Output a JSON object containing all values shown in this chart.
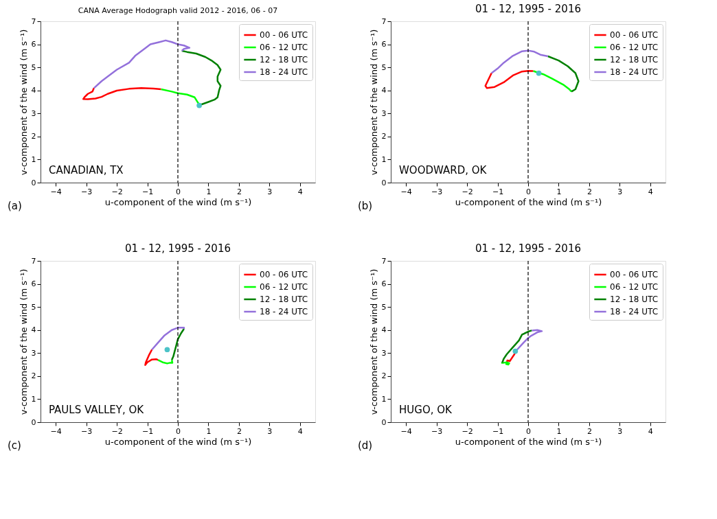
{
  "chart_data": [
    {
      "type": "line",
      "title": "CANA Average Hodograph valid 2012 - 2016, 06 - 07",
      "xlabel": "u-component of the wind (m s⁻¹)",
      "ylabel": "v-component of the wind (m s⁻¹)",
      "xlim": [
        -4.5,
        4.5
      ],
      "ylim": [
        0,
        7
      ],
      "xticks": [
        -4,
        -3,
        -2,
        -1,
        0,
        1,
        2,
        3,
        4
      ],
      "yticks": [
        0,
        1,
        2,
        3,
        4,
        5,
        6,
        7
      ],
      "grid": false,
      "legend": "top right",
      "line_style": "solid",
      "ref_lines": [
        {
          "axis": "x",
          "value": 0,
          "color": "#000000",
          "line_style": "dashed"
        }
      ],
      "annotations": [
        "CANADIAN, TX",
        "(a)"
      ],
      "series": [
        {
          "name": "00 - 06 UTC",
          "color": "#ff0000",
          "x": [
            -2.75,
            -2.8,
            -2.95,
            -3.05,
            -3.1,
            -2.95,
            -2.7,
            -2.5,
            -2.3,
            -2.0,
            -1.6,
            -1.2,
            -0.8,
            -0.55
          ],
          "values": [
            4.1,
            3.95,
            3.85,
            3.72,
            3.63,
            3.62,
            3.65,
            3.72,
            3.85,
            3.99,
            4.07,
            4.1,
            4.08,
            4.05
          ]
        },
        {
          "name": "06 - 12 UTC",
          "color": "#00ff00",
          "x": [
            -0.55,
            -0.2,
            0,
            0.3,
            0.55,
            0.62,
            0.7,
            0.7,
            0.75
          ],
          "values": [
            4.05,
            3.95,
            3.88,
            3.82,
            3.7,
            3.55,
            3.38,
            3.32,
            3.38
          ]
        },
        {
          "name": "12 - 18 UTC",
          "color": "#008000",
          "x": [
            0.75,
            1.0,
            1.2,
            1.3,
            1.35,
            1.4,
            1.3,
            1.3,
            1.4,
            1.3,
            1.1,
            0.9,
            0.6,
            0.3,
            0.13
          ],
          "values": [
            3.38,
            3.5,
            3.6,
            3.7,
            4.0,
            4.2,
            4.4,
            4.6,
            4.9,
            5.1,
            5.3,
            5.45,
            5.6,
            5.67,
            5.72
          ]
        },
        {
          "name": "18 - 24 UTC",
          "color": "#9370db",
          "x": [
            0.13,
            0.2,
            0.38,
            0.2,
            0,
            -0.2,
            -0.4,
            -0.6,
            -0.9,
            -1.1,
            -1.4,
            -1.6,
            -2.0,
            -2.3,
            -2.5,
            -2.75
          ],
          "values": [
            5.72,
            5.8,
            5.85,
            5.95,
            6.0,
            6.1,
            6.17,
            6.1,
            6.0,
            5.8,
            5.5,
            5.2,
            4.9,
            4.6,
            4.4,
            4.1
          ]
        },
        {
          "type": "scatter",
          "marker": "circle",
          "color": "#4cc3c8",
          "x": [
            0.7
          ],
          "values": [
            3.35
          ]
        }
      ]
    },
    {
      "type": "line",
      "title": "01 - 12, 1995 - 2016",
      "xlabel": "u-component of the wind (m s⁻¹)",
      "ylabel": "v-component of the wind (m s⁻¹)",
      "xlim": [
        -4.5,
        4.5
      ],
      "ylim": [
        0,
        7
      ],
      "xticks": [
        -4,
        -3,
        -2,
        -1,
        0,
        1,
        2,
        3,
        4
      ],
      "yticks": [
        0,
        1,
        2,
        3,
        4,
        5,
        6,
        7
      ],
      "grid": false,
      "legend": "top right",
      "line_style": "solid",
      "ref_lines": [
        {
          "axis": "x",
          "value": 0,
          "color": "#000000",
          "line_style": "dashed"
        }
      ],
      "annotations": [
        "WOODWARD, OK",
        "(b)"
      ],
      "series": [
        {
          "name": "00 - 06 UTC",
          "color": "#ff0000",
          "x": [
            -1.2,
            -1.4,
            -1.35,
            -1.1,
            -0.8,
            -0.5,
            -0.2,
            0,
            0.17
          ],
          "values": [
            4.75,
            4.2,
            4.1,
            4.15,
            4.35,
            4.65,
            4.82,
            4.85,
            4.84
          ]
        },
        {
          "name": "06 - 12 UTC",
          "color": "#00ff00",
          "x": [
            0.17,
            0.5,
            0.8,
            1.15,
            1.35,
            1.42
          ],
          "values": [
            4.84,
            4.7,
            4.5,
            4.25,
            4.05,
            3.95
          ]
        },
        {
          "name": "12 - 18 UTC",
          "color": "#008000",
          "x": [
            1.42,
            1.55,
            1.65,
            1.55,
            1.3,
            1.0,
            0.65
          ],
          "values": [
            3.95,
            4.05,
            4.4,
            4.75,
            5.05,
            5.3,
            5.48
          ]
        },
        {
          "name": "18 - 24 UTC",
          "color": "#9370db",
          "x": [
            0.65,
            0.4,
            0.2,
            0,
            -0.2,
            -0.5,
            -0.8,
            -1.0,
            -1.2
          ],
          "values": [
            5.48,
            5.55,
            5.68,
            5.73,
            5.7,
            5.5,
            5.2,
            4.95,
            4.75
          ]
        },
        {
          "type": "scatter",
          "marker": "circle",
          "color": "#4cc3c8",
          "x": [
            0.35
          ],
          "values": [
            4.75
          ]
        }
      ]
    },
    {
      "type": "line",
      "title": "01 - 12, 1995 - 2016",
      "xlabel": "u-component of the wind (m s⁻¹)",
      "ylabel": "v-component of the wind (m s⁻¹)",
      "xlim": [
        -4.5,
        4.5
      ],
      "ylim": [
        0,
        7
      ],
      "xticks": [
        -4,
        -3,
        -2,
        -1,
        0,
        1,
        2,
        3,
        4
      ],
      "yticks": [
        0,
        1,
        2,
        3,
        4,
        5,
        6,
        7
      ],
      "grid": false,
      "legend": "top right",
      "line_style": "solid",
      "ref_lines": [
        {
          "axis": "x",
          "value": 0,
          "color": "#000000",
          "line_style": "dashed"
        }
      ],
      "annotations": [
        "PAULS VALLEY, OK",
        "(c)"
      ],
      "series": [
        {
          "name": "00 - 06 UTC",
          "color": "#ff0000",
          "x": [
            -0.85,
            -0.95,
            -1.05,
            -1.07,
            -1.0,
            -0.85,
            -0.7,
            -0.65
          ],
          "values": [
            3.15,
            2.9,
            2.6,
            2.48,
            2.6,
            2.72,
            2.73,
            2.7
          ]
        },
        {
          "name": "06 - 12 UTC",
          "color": "#00ff00",
          "x": [
            -0.65,
            -0.5,
            -0.35,
            -0.25,
            -0.18,
            -0.2
          ],
          "values": [
            2.7,
            2.6,
            2.55,
            2.58,
            2.58,
            2.7
          ]
        },
        {
          "name": "12 - 18 UTC",
          "color": "#008000",
          "x": [
            -0.2,
            -0.15,
            -0.1,
            -0.05,
            0,
            0.1,
            0.2
          ],
          "values": [
            2.7,
            2.85,
            3.1,
            3.35,
            3.6,
            3.85,
            4.05
          ]
        },
        {
          "name": "18 - 24 UTC",
          "color": "#9370db",
          "x": [
            0.2,
            0.2,
            0,
            -0.2,
            -0.45,
            -0.65,
            -0.85
          ],
          "values": [
            4.05,
            4.1,
            4.1,
            4.0,
            3.75,
            3.45,
            3.15
          ]
        },
        {
          "type": "scatter",
          "marker": "circle",
          "color": "#4cc3c8",
          "x": [
            -0.35
          ],
          "values": [
            3.15
          ]
        }
      ]
    },
    {
      "type": "line",
      "title": "01 - 12, 1995 - 2016",
      "xlabel": "u-component of the wind (m s⁻¹)",
      "ylabel": "v-component of the wind (m s⁻¹)",
      "xlim": [
        -4.5,
        4.5
      ],
      "ylim": [
        0,
        7
      ],
      "xticks": [
        -4,
        -3,
        -2,
        -1,
        0,
        1,
        2,
        3,
        4
      ],
      "yticks": [
        0,
        1,
        2,
        3,
        4,
        5,
        6,
        7
      ],
      "grid": false,
      "legend": "top right",
      "line_style": "solid",
      "ref_lines": [
        {
          "axis": "x",
          "value": 0,
          "color": "#000000",
          "line_style": "dashed"
        }
      ],
      "annotations": [
        "HUGO, OK",
        "(d)"
      ],
      "series": [
        {
          "name": "00 - 06 UTC",
          "color": "#ff0000",
          "x": [
            -0.38,
            -0.45,
            -0.55,
            -0.6,
            -0.68,
            -0.7
          ],
          "values": [
            3.12,
            2.95,
            2.75,
            2.65,
            2.68,
            2.62
          ]
        },
        {
          "name": "06 - 12 UTC",
          "color": "#00ff00",
          "x": [
            -0.7,
            -0.72,
            -0.65,
            -0.62,
            -0.7,
            -0.8,
            -0.88
          ],
          "values": [
            2.62,
            2.52,
            2.5,
            2.56,
            2.6,
            2.58,
            2.58
          ]
        },
        {
          "name": "12 - 18 UTC",
          "color": "#008000",
          "x": [
            -0.85,
            -0.8,
            -0.7,
            -0.5,
            -0.3,
            -0.2,
            0,
            0.12
          ],
          "values": [
            2.58,
            2.75,
            2.95,
            3.25,
            3.55,
            3.8,
            3.93,
            3.98
          ]
        },
        {
          "name": "18 - 24 UTC",
          "color": "#9370db",
          "x": [
            0.12,
            0.3,
            0.45,
            0.3,
            0.1,
            0,
            -0.15,
            -0.38
          ],
          "values": [
            3.98,
            4.0,
            3.95,
            3.9,
            3.75,
            3.65,
            3.45,
            3.12
          ]
        },
        {
          "type": "scatter",
          "marker": "circle",
          "color": "#4cc3c8",
          "x": [
            -0.42
          ],
          "values": [
            3.08
          ]
        }
      ]
    }
  ]
}
